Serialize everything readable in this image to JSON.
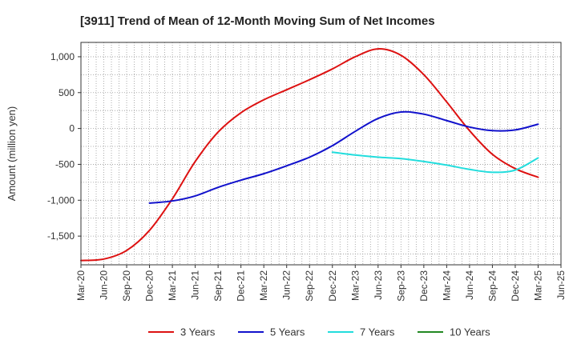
{
  "chart_data": {
    "type": "line",
    "title": "[3911]  Trend of Mean of 12-Month Moving Sum of Net Incomes",
    "xlabel": "",
    "ylabel": "Amount (million yen)",
    "x_ticks": [
      "Mar-20",
      "Jun-20",
      "Sep-20",
      "Dec-20",
      "Mar-21",
      "Jun-21",
      "Sep-21",
      "Dec-21",
      "Mar-22",
      "Jun-22",
      "Sep-22",
      "Dec-22",
      "Mar-23",
      "Jun-23",
      "Sep-23",
      "Dec-23",
      "Mar-24",
      "Jun-24",
      "Sep-24",
      "Dec-24",
      "Mar-25",
      "Jun-25"
    ],
    "y_ticks": [
      1000,
      500,
      0,
      -500,
      -1000,
      -1500
    ],
    "y_tick_labels": [
      "1,000",
      "500",
      "0",
      "-500",
      "-1,000",
      "-1,500"
    ],
    "ylim": [
      -1900,
      1200
    ],
    "grid": true,
    "legend_position": "bottom",
    "series": [
      {
        "name": "3 Years",
        "color": "#dd1111",
        "points": [
          [
            "Mar-20",
            -1840
          ],
          [
            "Jun-20",
            -1820
          ],
          [
            "Sep-20",
            -1700
          ],
          [
            "Dec-20",
            -1420
          ],
          [
            "Mar-21",
            -980
          ],
          [
            "Jun-21",
            -460
          ],
          [
            "Sep-21",
            -50
          ],
          [
            "Dec-21",
            220
          ],
          [
            "Mar-22",
            400
          ],
          [
            "Jun-22",
            540
          ],
          [
            "Sep-22",
            680
          ],
          [
            "Dec-22",
            830
          ],
          [
            "Mar-23",
            1000
          ],
          [
            "Jun-23",
            1110
          ],
          [
            "Sep-23",
            1020
          ],
          [
            "Dec-23",
            750
          ],
          [
            "Mar-24",
            370
          ],
          [
            "Jun-24",
            -30
          ],
          [
            "Sep-24",
            -360
          ],
          [
            "Dec-24",
            -560
          ],
          [
            "Mar-25",
            -680
          ]
        ]
      },
      {
        "name": "5 Years",
        "color": "#1111cc",
        "points": [
          [
            "Dec-20",
            -1040
          ],
          [
            "Mar-21",
            -1010
          ],
          [
            "Jun-21",
            -940
          ],
          [
            "Sep-21",
            -820
          ],
          [
            "Dec-21",
            -720
          ],
          [
            "Mar-22",
            -630
          ],
          [
            "Jun-22",
            -520
          ],
          [
            "Sep-22",
            -400
          ],
          [
            "Dec-22",
            -240
          ],
          [
            "Mar-23",
            -40
          ],
          [
            "Jun-23",
            140
          ],
          [
            "Sep-23",
            230
          ],
          [
            "Dec-23",
            200
          ],
          [
            "Mar-24",
            110
          ],
          [
            "Jun-24",
            20
          ],
          [
            "Sep-24",
            -30
          ],
          [
            "Dec-24",
            -20
          ],
          [
            "Mar-25",
            60
          ]
        ]
      },
      {
        "name": "7 Years",
        "color": "#22dddd",
        "points": [
          [
            "Dec-22",
            -330
          ],
          [
            "Mar-23",
            -370
          ],
          [
            "Jun-23",
            -400
          ],
          [
            "Sep-23",
            -420
          ],
          [
            "Dec-23",
            -460
          ],
          [
            "Mar-24",
            -510
          ],
          [
            "Jun-24",
            -570
          ],
          [
            "Sep-24",
            -610
          ],
          [
            "Dec-24",
            -580
          ],
          [
            "Mar-25",
            -410
          ]
        ]
      },
      {
        "name": "10 Years",
        "color": "#228822",
        "points": []
      }
    ]
  }
}
